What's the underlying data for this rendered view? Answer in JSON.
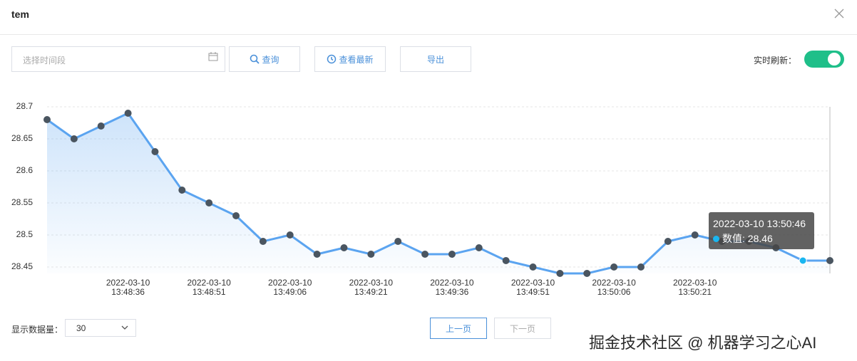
{
  "header": {
    "title": "tem"
  },
  "toolbar": {
    "date_placeholder": "选择时间段",
    "search": "查询",
    "latest": "查看最新",
    "export": "导出",
    "refresh_label": "实时刷新："
  },
  "chart_data": {
    "type": "line",
    "categories": [
      null,
      null,
      null,
      "2022-03-10\n13:48:36",
      null,
      null,
      "2022-03-10\n13:48:51",
      null,
      null,
      "2022-03-10\n13:49:06",
      null,
      null,
      "2022-03-10\n13:49:21",
      null,
      null,
      "2022-03-10\n13:49:36",
      null,
      null,
      "2022-03-10\n13:49:51",
      null,
      null,
      "2022-03-10\n13:50:06",
      null,
      null,
      "2022-03-10\n13:50:21",
      null,
      null,
      null,
      null,
      null
    ],
    "series": [
      {
        "color": "#5ba4f0",
        "values": [
          28.68,
          28.65,
          28.67,
          28.69,
          28.63,
          28.57,
          28.55,
          28.53,
          28.49,
          28.5,
          28.47,
          28.48,
          28.47,
          28.49,
          28.47,
          28.47,
          28.48,
          28.46,
          28.45,
          28.44,
          28.44,
          28.45,
          28.45,
          28.49,
          28.5,
          28.49,
          28.49,
          28.48,
          28.46,
          28.46
        ]
      }
    ],
    "ylim": [
      28.44,
      28.7
    ],
    "yticks": [
      28.45,
      28.5,
      28.55,
      28.6,
      28.65,
      28.7
    ],
    "grid": true,
    "tooltip": {
      "title": "2022-03-10 13:50:46",
      "text": "数值: 28.46"
    }
  },
  "footer": {
    "count_label": "显示数据量：",
    "count": "30",
    "prev": "上一页",
    "next": "下一页"
  },
  "watermark": "掘金技术社区 @ 机器学习之心AI"
}
